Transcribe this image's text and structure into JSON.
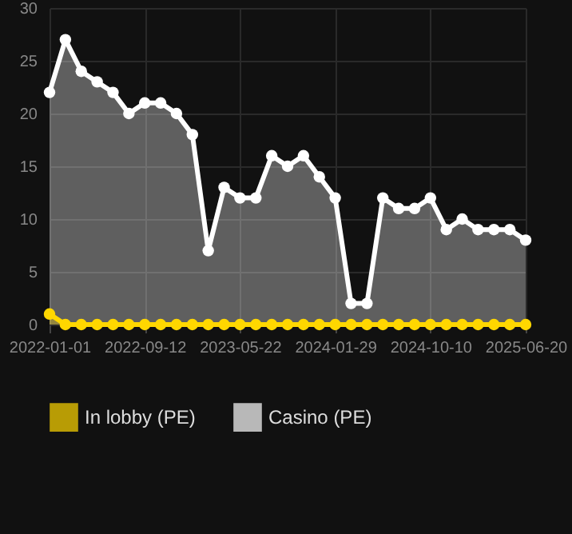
{
  "chart_data": {
    "type": "area",
    "categories": [
      "2022-01-01",
      null,
      null,
      null,
      null,
      null,
      "2022-09-12",
      null,
      null,
      null,
      null,
      null,
      "2023-05-22",
      null,
      null,
      null,
      null,
      null,
      "2024-01-29",
      null,
      null,
      null,
      null,
      null,
      "2024-10-10",
      null,
      null,
      null,
      null,
      null,
      "2025-06-20"
    ],
    "series": [
      {
        "name": "In lobby (PE)",
        "color": "#ffd700",
        "values": [
          1,
          0,
          0,
          0,
          0,
          0,
          0,
          0,
          0,
          0,
          0,
          0,
          0,
          0,
          0,
          0,
          0,
          0,
          0,
          0,
          0,
          0,
          0,
          0,
          0,
          0,
          0,
          0,
          0,
          0,
          0
        ]
      },
      {
        "name": "Casino (PE)",
        "color": "#ffffff",
        "values": [
          22,
          27,
          24,
          23,
          22,
          20,
          21,
          21,
          20,
          18,
          7,
          13,
          12,
          12,
          16,
          15,
          16,
          14,
          12,
          2,
          2,
          12,
          11,
          11,
          12,
          9,
          10,
          9,
          9,
          9,
          8
        ]
      }
    ],
    "ylim": [
      0,
      30
    ],
    "yticks": [
      0,
      5,
      10,
      15,
      20,
      25,
      30
    ],
    "grid": true,
    "legend": "bottom",
    "marker": "circle"
  }
}
